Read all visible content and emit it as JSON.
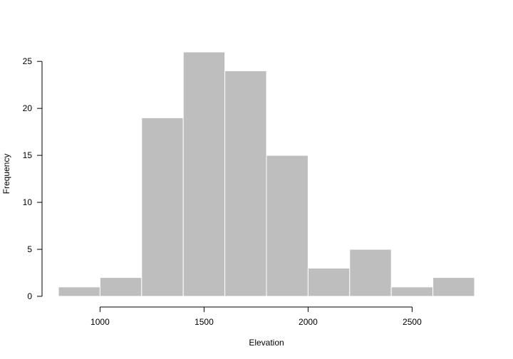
{
  "chart_data": {
    "type": "bar",
    "title": "",
    "xlabel": "Elevation",
    "ylabel": "Frequency",
    "bins": [
      {
        "from": 800,
        "to": 1000,
        "count": 1
      },
      {
        "from": 1000,
        "to": 1200,
        "count": 2
      },
      {
        "from": 1200,
        "to": 1400,
        "count": 19
      },
      {
        "from": 1400,
        "to": 1600,
        "count": 26
      },
      {
        "from": 1600,
        "to": 1800,
        "count": 24
      },
      {
        "from": 1800,
        "to": 2000,
        "count": 15
      },
      {
        "from": 2000,
        "to": 2200,
        "count": 3
      },
      {
        "from": 2200,
        "to": 2400,
        "count": 5
      },
      {
        "from": 2400,
        "to": 2600,
        "count": 1
      },
      {
        "from": 2600,
        "to": 2800,
        "count": 2
      }
    ],
    "xticks": [
      1000,
      1500,
      2000,
      2500
    ],
    "yticks": [
      0,
      5,
      10,
      15,
      20,
      25
    ],
    "xlim": [
      800,
      2800
    ],
    "ylim": [
      0,
      26
    ],
    "bar_color": "#bebebe",
    "bar_edge_color": "#ffffff",
    "grid": false,
    "legend": "none"
  }
}
